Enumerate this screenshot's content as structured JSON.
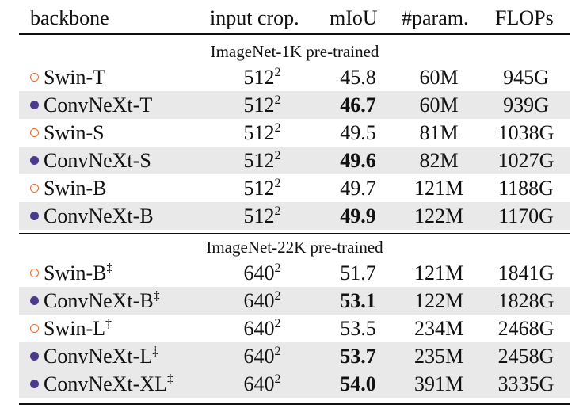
{
  "header": {
    "backbone": "backbone",
    "input_crop": "input crop.",
    "miou": "mIoU",
    "params": "#param.",
    "flops": "FLOPs"
  },
  "sections": [
    {
      "label": "ImageNet-1K pre-trained",
      "rows": [
        {
          "marker": "open",
          "name": "Swin-T",
          "dagger": "",
          "crop": "512",
          "crop_exp": "2",
          "miou": "45.8",
          "miou_bold": false,
          "params": "60M",
          "flops": "945G",
          "shaded": false
        },
        {
          "marker": "filled",
          "name": "ConvNeXt-T",
          "dagger": "",
          "crop": "512",
          "crop_exp": "2",
          "miou": "46.7",
          "miou_bold": true,
          "params": "60M",
          "flops": "939G",
          "shaded": true
        },
        {
          "marker": "open",
          "name": "Swin-S",
          "dagger": "",
          "crop": "512",
          "crop_exp": "2",
          "miou": "49.5",
          "miou_bold": false,
          "params": "81M",
          "flops": "1038G",
          "shaded": false
        },
        {
          "marker": "filled",
          "name": "ConvNeXt-S",
          "dagger": "",
          "crop": "512",
          "crop_exp": "2",
          "miou": "49.6",
          "miou_bold": true,
          "params": "82M",
          "flops": "1027G",
          "shaded": true
        },
        {
          "marker": "open",
          "name": "Swin-B",
          "dagger": "",
          "crop": "512",
          "crop_exp": "2",
          "miou": "49.7",
          "miou_bold": false,
          "params": "121M",
          "flops": "1188G",
          "shaded": false
        },
        {
          "marker": "filled",
          "name": "ConvNeXt-B",
          "dagger": "",
          "crop": "512",
          "crop_exp": "2",
          "miou": "49.9",
          "miou_bold": true,
          "params": "122M",
          "flops": "1170G",
          "shaded": true
        }
      ]
    },
    {
      "label": "ImageNet-22K pre-trained",
      "rows": [
        {
          "marker": "open",
          "name": "Swin-B",
          "dagger": "‡",
          "crop": "640",
          "crop_exp": "2",
          "miou": "51.7",
          "miou_bold": false,
          "params": "121M",
          "flops": "1841G",
          "shaded": false
        },
        {
          "marker": "filled",
          "name": "ConvNeXt-B",
          "dagger": "‡",
          "crop": "640",
          "crop_exp": "2",
          "miou": "53.1",
          "miou_bold": true,
          "params": "122M",
          "flops": "1828G",
          "shaded": true
        },
        {
          "marker": "open",
          "name": "Swin-L",
          "dagger": "‡",
          "crop": "640",
          "crop_exp": "2",
          "miou": "53.5",
          "miou_bold": false,
          "params": "234M",
          "flops": "2468G",
          "shaded": false
        },
        {
          "marker": "filled",
          "name": "ConvNeXt-L",
          "dagger": "‡",
          "crop": "640",
          "crop_exp": "2",
          "miou": "53.7",
          "miou_bold": true,
          "params": "235M",
          "flops": "2458G",
          "shaded": true
        },
        {
          "marker": "filled",
          "name": "ConvNeXt-XL",
          "dagger": "‡",
          "crop": "640",
          "crop_exp": "2",
          "miou": "54.0",
          "miou_bold": true,
          "params": "391M",
          "flops": "3335G",
          "shaded": true
        }
      ]
    }
  ],
  "colors": {
    "open_marker": "#e8692a",
    "filled_marker": "#4b3a8c",
    "row_shade": "#e9e9e9"
  }
}
